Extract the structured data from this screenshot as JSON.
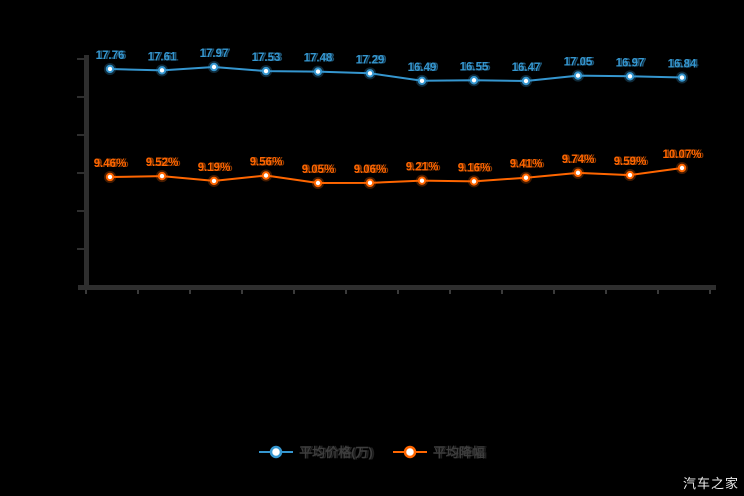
{
  "chart_data": {
    "type": "line",
    "title": "",
    "x_tick_count": 13,
    "y_tick_count": 6,
    "grid": false,
    "axis_tick_labels_visible": false,
    "legend_position": "bottom",
    "series": [
      {
        "name": "平均价格(万)",
        "color": "#3596cf",
        "values": [
          17.76,
          17.61,
          17.97,
          17.53,
          17.48,
          17.29,
          16.49,
          16.55,
          16.47,
          17.05,
          16.97,
          16.84
        ],
        "labels": [
          "17.76",
          "17.61",
          "17.97",
          "17.53",
          "17.48",
          "17.29",
          "16.49",
          "16.55",
          "16.47",
          "17.05",
          "16.97",
          "16.84"
        ]
      },
      {
        "name": "平均降幅",
        "color": "#ff6600",
        "values": [
          9.46,
          9.52,
          9.19,
          9.56,
          9.05,
          9.06,
          9.21,
          9.16,
          9.41,
          9.74,
          9.59,
          10.07
        ],
        "labels": [
          "9.46%",
          "9.52%",
          "9.19%",
          "9.56%",
          "9.05%",
          "9.06%",
          "9.21%",
          "9.16%",
          "9.41%",
          "9.74%",
          "9.59%",
          "10.07%"
        ]
      }
    ]
  },
  "legend": {
    "items": [
      {
        "label": "平均价格(万)",
        "color": "#3596cf"
      },
      {
        "label": "平均降幅",
        "color": "#ff6600"
      }
    ]
  },
  "watermark": "汽车之家",
  "colors": {
    "background": "#000000",
    "axis": "#2e2e2e",
    "tick": "#3a3a3a",
    "series_blue": "#3596cf",
    "series_orange": "#ff6600",
    "legend_text": "#3d3d3d",
    "watermark_text": "#ededed"
  }
}
